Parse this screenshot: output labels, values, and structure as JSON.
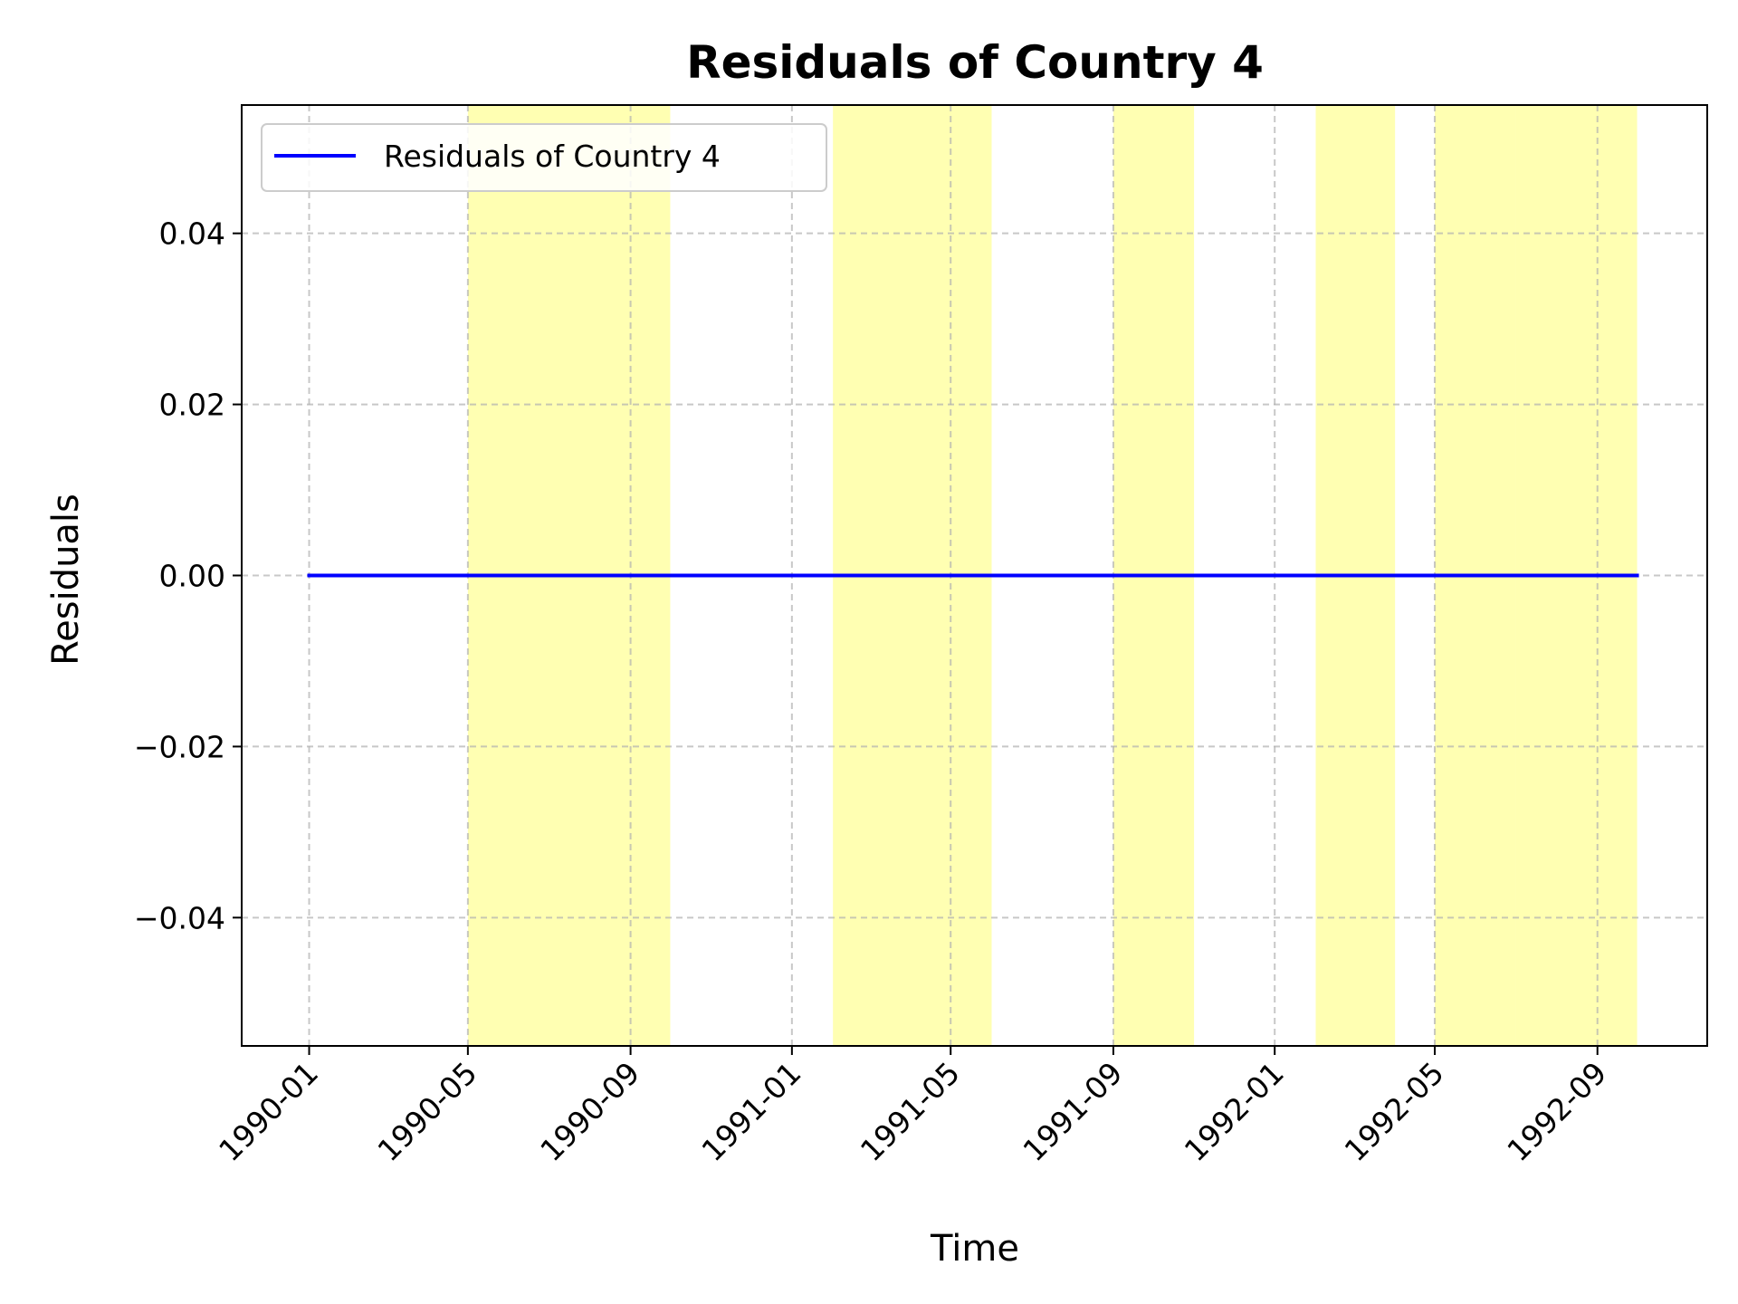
{
  "chart_data": {
    "type": "line",
    "title": "Residuals of Country 4",
    "xlabel": "Time",
    "ylabel": "Residuals",
    "x_ticks": [
      "1990-01",
      "1990-05",
      "1990-09",
      "1991-01",
      "1991-05",
      "1991-09",
      "1992-01",
      "1992-05",
      "1992-09"
    ],
    "y_ticks": [
      "0.04",
      "0.02",
      "0.00",
      "−0.02",
      "−0.04"
    ],
    "y_tick_values": [
      0.04,
      0.02,
      0.0,
      -0.02,
      -0.04
    ],
    "xlim": [
      "1989-11-11",
      "1992-11-23"
    ],
    "ylim": [
      -0.055,
      0.055
    ],
    "grid": true,
    "legend_position": "upper-left",
    "series": [
      {
        "name": "Residuals of Country 4",
        "color": "#0000ff",
        "x": [
          "1990-01",
          "1990-02",
          "1990-03",
          "1990-04",
          "1990-05",
          "1990-06",
          "1990-07",
          "1990-08",
          "1990-09",
          "1990-10",
          "1990-11",
          "1990-12",
          "1991-01",
          "1991-02",
          "1991-03",
          "1991-04",
          "1991-05",
          "1991-06",
          "1991-07",
          "1991-08",
          "1991-09",
          "1991-10",
          "1991-11",
          "1991-12",
          "1992-01",
          "1992-02",
          "1992-03",
          "1992-04",
          "1992-05",
          "1992-06",
          "1992-07",
          "1992-08",
          "1992-09",
          "1992-10"
        ],
        "values": [
          0,
          0,
          0,
          0,
          0,
          0,
          0,
          0,
          0,
          0,
          0,
          0,
          0,
          0,
          0,
          0,
          0,
          0,
          0,
          0,
          0,
          0,
          0,
          0,
          0,
          0,
          0,
          0,
          0,
          0,
          0,
          0,
          0,
          0
        ]
      }
    ],
    "shaded_regions": [
      {
        "start": "1990-05",
        "end": "1990-10"
      },
      {
        "start": "1991-02",
        "end": "1991-06"
      },
      {
        "start": "1991-09",
        "end": "1991-11"
      },
      {
        "start": "1992-02",
        "end": "1992-04"
      },
      {
        "start": "1992-05",
        "end": "1992-07"
      },
      {
        "start": "1992-07",
        "end": "1992-10"
      }
    ],
    "shade_color": "#ffff00"
  }
}
